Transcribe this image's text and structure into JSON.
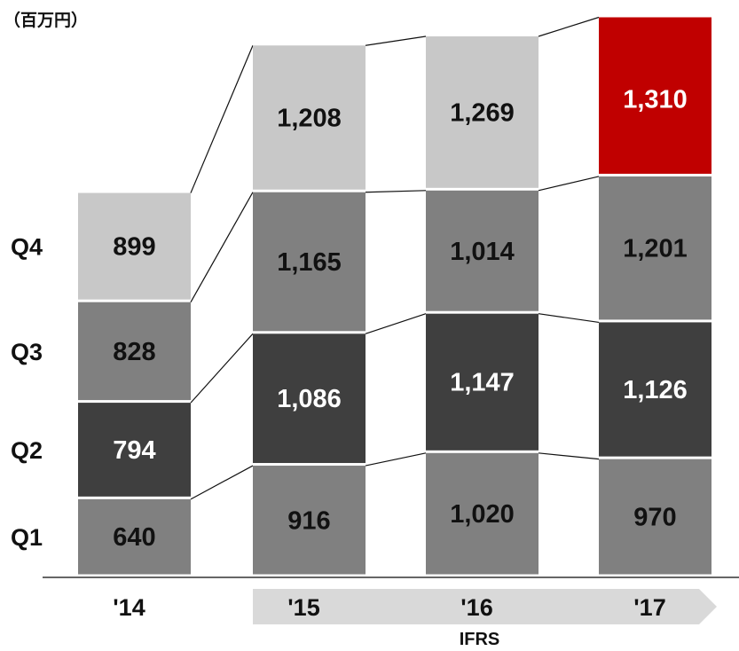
{
  "chart_data": {
    "type": "bar",
    "stacked": true,
    "unit_label": "（百万円）",
    "categories": [
      "'14",
      "'15",
      "'16",
      "'17"
    ],
    "series": [
      {
        "name": "Q1",
        "values": [
          640,
          916,
          1020,
          970
        ]
      },
      {
        "name": "Q2",
        "values": [
          794,
          1086,
          1147,
          1126
        ]
      },
      {
        "name": "Q3",
        "values": [
          828,
          1165,
          1014,
          1201
        ]
      },
      {
        "name": "Q4",
        "values": [
          899,
          1208,
          1269,
          1310
        ]
      }
    ],
    "value_labels": {
      "Q1": [
        "640",
        "916",
        "1,020",
        "970"
      ],
      "Q2": [
        "794",
        "1,086",
        "1,147",
        "1,126"
      ],
      "Q3": [
        "828",
        "1,165",
        "1,014",
        "1,201"
      ],
      "Q4": [
        "899",
        "1,208",
        "1,269",
        "1,310"
      ]
    },
    "series_colors": {
      "Q1": "#808080",
      "Q2": "#3f3f3f",
      "Q3": "#808080",
      "Q4": "#c8c8c8"
    },
    "highlight": {
      "series": "Q4",
      "category": "'17",
      "color": "#c00000"
    },
    "accounting_band": {
      "label": "IFRS",
      "categories": [
        "'15",
        "'16",
        "'17"
      ],
      "color": "#d9d9d9"
    },
    "legend": "left",
    "grid": false,
    "connector_lines": true
  }
}
